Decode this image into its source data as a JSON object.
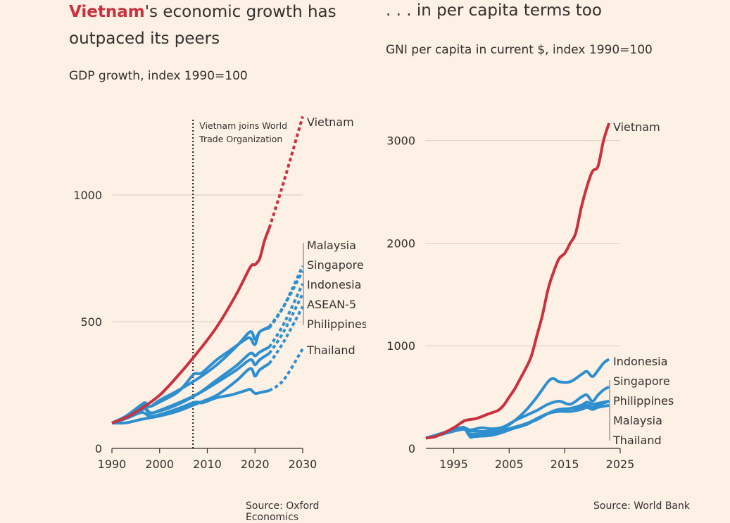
{
  "colors": {
    "background": "#fdf1e5",
    "highlight": "#c9313e",
    "peers": "#2e8fcf",
    "grid": "#d8cdc2",
    "text": "#33302e"
  },
  "left": {
    "title_highlight": "Vietnam",
    "title_rest": "'s economic growth has outpaced its peers",
    "subtitle": "GDP growth, index 1990=100",
    "source": "Source: Oxford Economics"
  },
  "right": {
    "title": ". . . in per capita terms too",
    "subtitle": "GNI per capita in current $, index 1990=100",
    "source": "Source: World Bank"
  },
  "chart_data": [
    {
      "type": "line",
      "title": "Vietnam's economic growth has outpaced its peers",
      "subtitle": "GDP growth, index 1990=100",
      "xlabel": "",
      "ylabel": "",
      "xlim": [
        1990,
        2030
      ],
      "ylim": [
        0,
        1300
      ],
      "xticks": [
        1990,
        2000,
        2010,
        2020,
        2030
      ],
      "yticks": [
        0,
        500,
        1000
      ],
      "grid": true,
      "forecast_from": 2023,
      "annotation": {
        "x": 2007,
        "text": [
          "Vietnam joins World",
          "Trade Organization"
        ]
      },
      "label_order": [
        "Malaysia",
        "Singapore",
        "Indonesia",
        "ASEAN-5",
        "Philippines"
      ],
      "series": [
        {
          "name": "Thailand",
          "x": [
            1990,
            1993,
            1996,
            1997,
            1998,
            2000,
            2004,
            2007,
            2008,
            2009,
            2012,
            2015,
            2018,
            2019,
            2020,
            2021,
            2023,
            2026,
            2030
          ],
          "values": [
            100,
            118,
            141,
            137,
            126,
            133,
            158,
            180,
            183,
            180,
            200,
            211,
            228,
            233,
            217,
            220,
            228,
            270,
            393
          ]
        },
        {
          "name": "Philippines",
          "x": [
            1990,
            1993,
            1996,
            2000,
            2004,
            2008,
            2012,
            2016,
            2019,
            2020,
            2021,
            2023,
            2026,
            2030
          ],
          "values": [
            100,
            101,
            114,
            128,
            148,
            178,
            210,
            265,
            315,
            285,
            310,
            335,
            420,
            560
          ]
        },
        {
          "name": "ASEAN-5",
          "x": [
            1990,
            1993,
            1996,
            1997,
            1998,
            2000,
            2004,
            2008,
            2012,
            2016,
            2019,
            2020,
            2021,
            2023,
            2026,
            2030
          ],
          "values": [
            100,
            122,
            150,
            155,
            138,
            150,
            180,
            215,
            260,
            308,
            350,
            330,
            350,
            375,
            460,
            610
          ]
        },
        {
          "name": "Indonesia",
          "x": [
            1990,
            1993,
            1996,
            1997,
            1998,
            2000,
            2004,
            2008,
            2012,
            2016,
            2019,
            2020,
            2021,
            2023,
            2026,
            2030
          ],
          "values": [
            100,
            124,
            155,
            162,
            141,
            147,
            175,
            215,
            270,
            325,
            375,
            365,
            380,
            400,
            490,
            650
          ]
        },
        {
          "name": "Singapore",
          "x": [
            1990,
            1993,
            1996,
            1997,
            1998,
            2000,
            2004,
            2007,
            2008,
            2009,
            2012,
            2015,
            2018,
            2019,
            2020,
            2021,
            2023,
            2026,
            2030
          ],
          "values": [
            100,
            124,
            160,
            172,
            165,
            183,
            225,
            290,
            295,
            300,
            350,
            390,
            430,
            435,
            410,
            460,
            475,
            560,
            720
          ]
        },
        {
          "name": "Malaysia",
          "x": [
            1990,
            1993,
            1996,
            1997,
            1998,
            2000,
            2004,
            2008,
            2012,
            2016,
            2019,
            2020,
            2021,
            2023,
            2026,
            2030
          ],
          "values": [
            100,
            128,
            170,
            180,
            165,
            190,
            230,
            275,
            330,
            400,
            460,
            430,
            460,
            480,
            560,
            700
          ]
        },
        {
          "name": "Vietnam",
          "x": [
            1990,
            1993,
            1996,
            2000,
            2004,
            2008,
            2012,
            2016,
            2019,
            2020,
            2021,
            2022,
            2023,
            2026,
            2030
          ],
          "values": [
            100,
            122,
            155,
            210,
            290,
            380,
            480,
            605,
            715,
            725,
            750,
            820,
            870,
            1050,
            1310
          ]
        }
      ]
    },
    {
      "type": "line",
      "title": ". . . in per capita terms too",
      "subtitle": "GNI per capita in current $, index 1990=100",
      "xlabel": "",
      "ylabel": "",
      "xlim": [
        1990,
        2025
      ],
      "ylim": [
        0,
        3300
      ],
      "xticks": [
        1995,
        2005,
        2015,
        2025
      ],
      "yticks": [
        0,
        1000,
        2000,
        3000
      ],
      "grid": true,
      "label_order": [
        "Indonesia",
        "Singapore",
        "Philippines",
        "Malaysia",
        "Thailand"
      ],
      "series": [
        {
          "name": "Thailand",
          "x": [
            1990,
            1993,
            1996,
            1997,
            1998,
            2000,
            2002,
            2004,
            2008,
            2010,
            2012,
            2014,
            2016,
            2018,
            2019,
            2020,
            2021,
            2023
          ],
          "values": [
            100,
            150,
            200,
            190,
            140,
            140,
            140,
            170,
            230,
            290,
            340,
            360,
            360,
            380,
            400,
            380,
            400,
            420
          ]
        },
        {
          "name": "Malaysia",
          "x": [
            1990,
            1993,
            1996,
            1997,
            1998,
            2000,
            2002,
            2004,
            2008,
            2010,
            2012,
            2014,
            2016,
            2018,
            2019,
            2020,
            2021,
            2023
          ],
          "values": [
            100,
            140,
            195,
            190,
            120,
            120,
            130,
            160,
            240,
            280,
            340,
            380,
            360,
            400,
            420,
            400,
            420,
            460
          ]
        },
        {
          "name": "Philippines",
          "x": [
            1990,
            1993,
            1996,
            1997,
            1998,
            2000,
            2002,
            2004,
            2008,
            2010,
            2012,
            2014,
            2016,
            2018,
            2019,
            2020,
            2021,
            2023
          ],
          "values": [
            100,
            140,
            180,
            185,
            170,
            165,
            170,
            180,
            240,
            290,
            340,
            380,
            390,
            420,
            450,
            430,
            440,
            460
          ]
        },
        {
          "name": "Singapore",
          "x": [
            1990,
            1993,
            1996,
            1997,
            1998,
            2000,
            2002,
            2004,
            2006,
            2008,
            2010,
            2012,
            2014,
            2016,
            2018,
            2019,
            2020,
            2021,
            2022,
            2023
          ],
          "values": [
            100,
            140,
            190,
            200,
            180,
            200,
            190,
            210,
            270,
            320,
            370,
            430,
            460,
            430,
            500,
            520,
            460,
            520,
            570,
            600
          ]
        },
        {
          "name": "Indonesia",
          "x": [
            1990,
            1993,
            1996,
            1997,
            1998,
            1999,
            2000,
            2002,
            2004,
            2006,
            2008,
            2010,
            2012,
            2013,
            2014,
            2016,
            2018,
            2019,
            2020,
            2021,
            2022,
            2023
          ],
          "values": [
            100,
            140,
            195,
            200,
            110,
            130,
            140,
            160,
            200,
            270,
            370,
            500,
            650,
            680,
            650,
            650,
            720,
            750,
            700,
            760,
            830,
            870
          ]
        },
        {
          "name": "Vietnam",
          "x": [
            1990,
            1992,
            1995,
            1997,
            1999,
            2001,
            2002,
            2003,
            2004,
            2005,
            2006,
            2007,
            2008,
            2009,
            2010,
            2011,
            2012,
            2013,
            2014,
            2015,
            2016,
            2017,
            2018,
            2019,
            2020,
            2021,
            2022,
            2023
          ],
          "values": [
            100,
            120,
            200,
            270,
            290,
            330,
            350,
            370,
            420,
            500,
            580,
            680,
            780,
            900,
            1100,
            1300,
            1550,
            1720,
            1850,
            1900,
            2000,
            2100,
            2350,
            2550,
            2700,
            2750,
            3000,
            3170
          ]
        }
      ]
    }
  ]
}
